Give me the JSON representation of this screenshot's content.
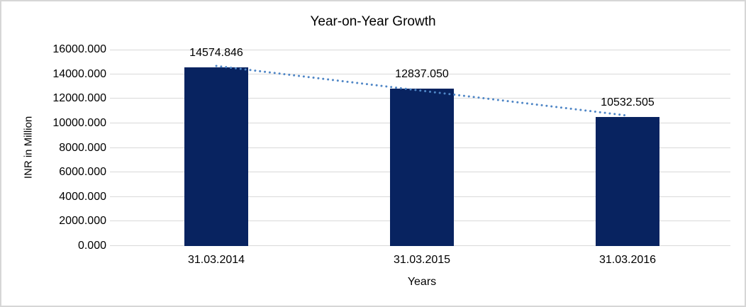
{
  "chart_data": {
    "type": "bar",
    "title": "Year-on-Year Growth",
    "xlabel": "Years",
    "ylabel": "INR in Million",
    "categories": [
      "31.03.2014",
      "31.03.2015",
      "31.03.2016"
    ],
    "values": [
      14574.846,
      12837.05,
      10532.505
    ],
    "data_labels": [
      "14574.846",
      "12837.050",
      "10532.505"
    ],
    "ylim": [
      0,
      16000
    ],
    "ytick_step": 2000,
    "ytick_labels": [
      "16000.000",
      "14000.000",
      "12000.000",
      "10000.000",
      "8000.000",
      "6000.000",
      "4000.000",
      "2000.000",
      "0.000"
    ],
    "grid": "horizontal-only",
    "legend": "none",
    "trendline": {
      "type": "linear",
      "style": "dotted"
    },
    "colors": {
      "bar": "#082360",
      "trendline": "#4f86c6",
      "gridline": "#d9d9d9",
      "text": "#000000",
      "frame_border": "#d6d6d6",
      "background": "#ffffff"
    }
  }
}
